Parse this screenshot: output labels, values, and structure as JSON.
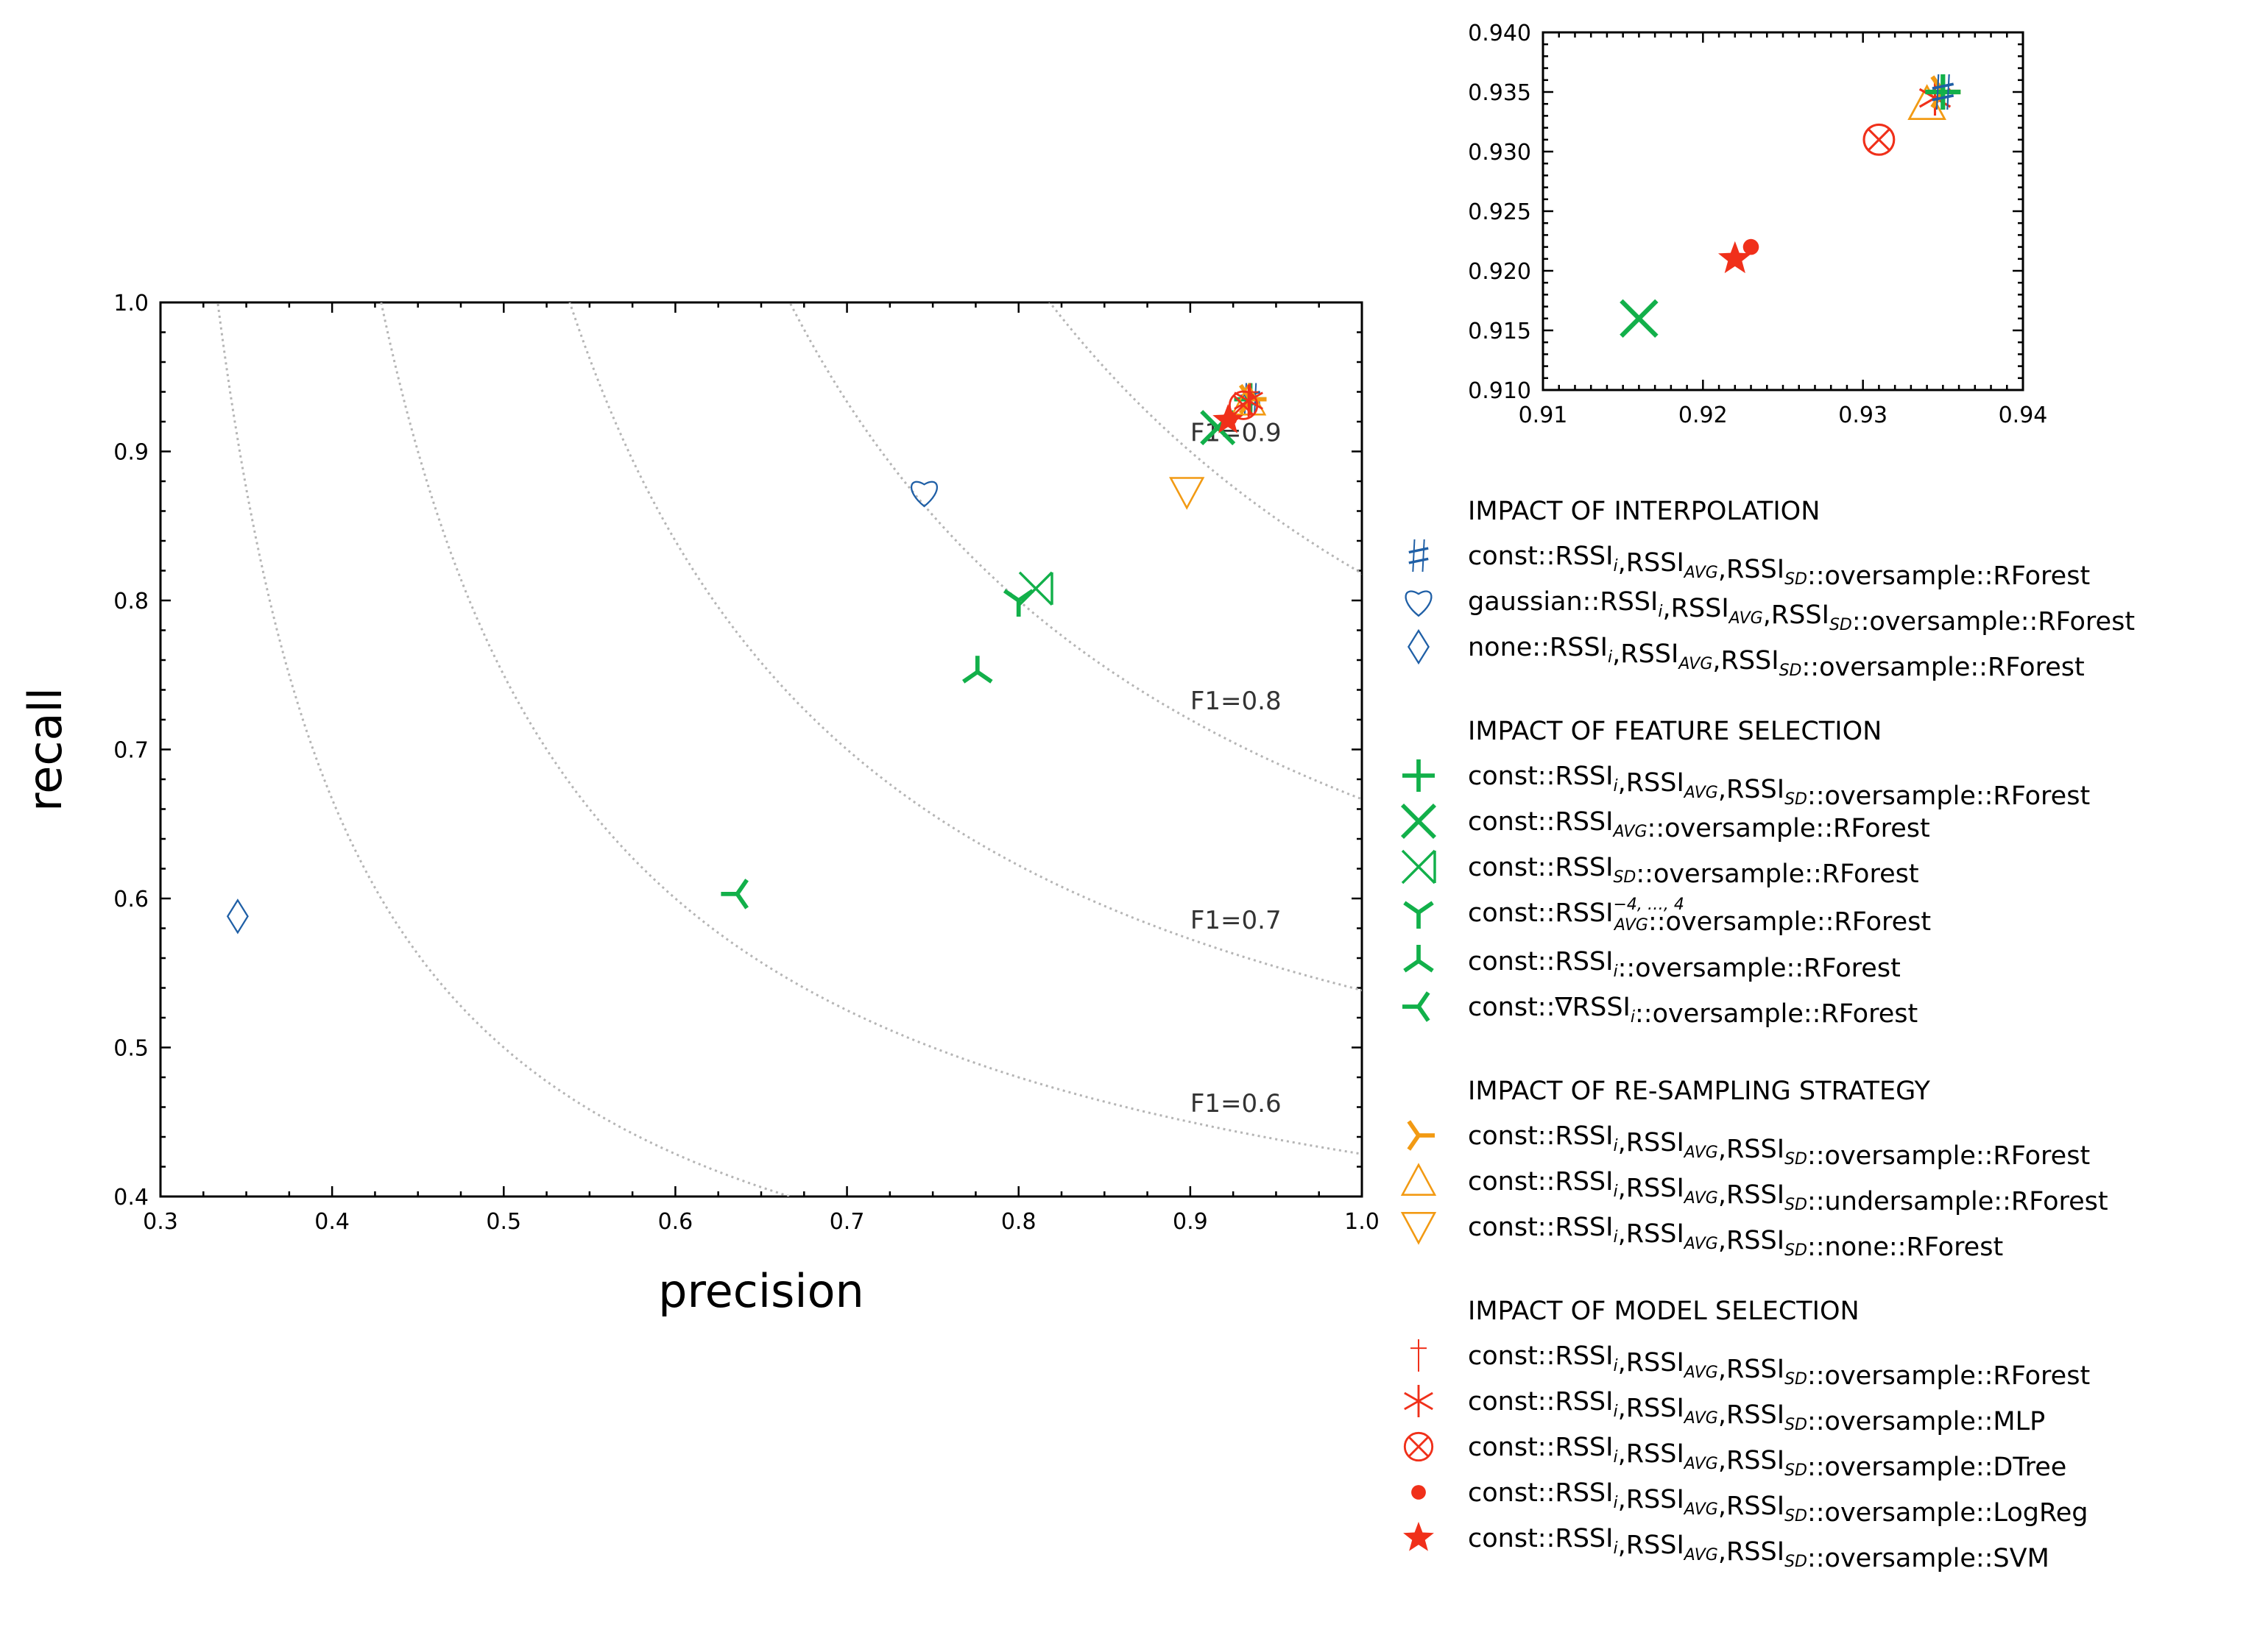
{
  "colors": {
    "blue": "#1f5fa6",
    "green": "#12b04a",
    "orange": "#f29a13",
    "red": "#f0301a",
    "iso": "#b5b5b5",
    "axis": "#000000"
  },
  "chart_data": [
    {
      "id": "main",
      "type": "scatter",
      "title": "",
      "xlabel": "precision",
      "ylabel": "recall",
      "xlim": [
        0.3,
        1.0
      ],
      "ylim": [
        0.4,
        1.0
      ],
      "xticks": [
        "0.3",
        "0.4",
        "0.5",
        "0.6",
        "0.7",
        "0.8",
        "0.9",
        "1.0"
      ],
      "yticks": [
        "0.4",
        "0.5",
        "0.6",
        "0.7",
        "0.8",
        "0.9",
        "1.0"
      ],
      "grid": false,
      "iso_f1": [
        {
          "f1": 0.5,
          "label": ""
        },
        {
          "f1": 0.6,
          "label": "F1=0.6"
        },
        {
          "f1": 0.7,
          "label": "F1=0.7"
        },
        {
          "f1": 0.8,
          "label": "F1=0.8"
        },
        {
          "f1": 0.9,
          "label": "F1=0.9"
        }
      ],
      "points": [
        {
          "series": "interp-const",
          "x": 0.935,
          "y": 0.935
        },
        {
          "series": "interp-gaussian",
          "x": 0.745,
          "y": 0.873
        },
        {
          "series": "interp-none",
          "x": 0.345,
          "y": 0.588
        },
        {
          "series": "feat-all",
          "x": 0.935,
          "y": 0.935
        },
        {
          "series": "feat-avg",
          "x": 0.916,
          "y": 0.916
        },
        {
          "series": "feat-sd",
          "x": 0.81,
          "y": 0.808
        },
        {
          "series": "feat-avg-window",
          "x": 0.8,
          "y": 0.8
        },
        {
          "series": "feat-rssi-i",
          "x": 0.776,
          "y": 0.752
        },
        {
          "series": "feat-grad",
          "x": 0.636,
          "y": 0.603
        },
        {
          "series": "resample-over",
          "x": 0.935,
          "y": 0.935
        },
        {
          "series": "resample-under",
          "x": 0.934,
          "y": 0.934
        },
        {
          "series": "resample-none",
          "x": 0.898,
          "y": 0.873
        },
        {
          "series": "model-rforest",
          "x": 0.935,
          "y": 0.935
        },
        {
          "series": "model-mlp",
          "x": 0.934,
          "y": 0.934
        },
        {
          "series": "model-dtree",
          "x": 0.931,
          "y": 0.931
        },
        {
          "series": "model-logreg",
          "x": 0.923,
          "y": 0.922
        },
        {
          "series": "model-svm",
          "x": 0.922,
          "y": 0.921
        }
      ]
    },
    {
      "id": "inset",
      "type": "scatter",
      "title": "",
      "xlabel": "",
      "ylabel": "",
      "xlim": [
        0.91,
        0.94
      ],
      "ylim": [
        0.91,
        0.94
      ],
      "xticks": [
        "0.91",
        "0.92",
        "0.93",
        "0.94"
      ],
      "yticks": [
        "0.910",
        "0.915",
        "0.920",
        "0.925",
        "0.930",
        "0.935",
        "0.940"
      ],
      "grid": false,
      "points": [
        {
          "series": "feat-avg",
          "x": 0.916,
          "y": 0.916
        },
        {
          "series": "model-svm",
          "x": 0.922,
          "y": 0.921
        },
        {
          "series": "model-logreg",
          "x": 0.923,
          "y": 0.922
        },
        {
          "series": "model-dtree",
          "x": 0.931,
          "y": 0.931
        },
        {
          "series": "resample-under",
          "x": 0.934,
          "y": 0.934
        },
        {
          "series": "model-mlp",
          "x": 0.9345,
          "y": 0.9345
        },
        {
          "series": "resample-over",
          "x": 0.935,
          "y": 0.935
        },
        {
          "series": "feat-all",
          "x": 0.935,
          "y": 0.935
        },
        {
          "series": "interp-const",
          "x": 0.935,
          "y": 0.935
        }
      ]
    }
  ],
  "series_styles": {
    "interp-const": {
      "marker": "sharp",
      "color": "blue"
    },
    "interp-gaussian": {
      "marker": "heart",
      "color": "blue"
    },
    "interp-none": {
      "marker": "diamond",
      "color": "blue"
    },
    "feat-all": {
      "marker": "plus",
      "color": "green"
    },
    "feat-avg": {
      "marker": "x",
      "color": "green"
    },
    "feat-sd": {
      "marker": "xbar",
      "color": "green"
    },
    "feat-avg-window": {
      "marker": "tri-down",
      "color": "green"
    },
    "feat-rssi-i": {
      "marker": "tri-up",
      "color": "green"
    },
    "feat-grad": {
      "marker": "tri-left",
      "color": "green"
    },
    "resample-over": {
      "marker": "tri-right",
      "color": "orange"
    },
    "resample-under": {
      "marker": "triangle-up",
      "color": "orange"
    },
    "resample-none": {
      "marker": "triangle-down",
      "color": "orange"
    },
    "model-rforest": {
      "marker": "dagger",
      "color": "red"
    },
    "model-mlp": {
      "marker": "asterisk",
      "color": "red"
    },
    "model-dtree": {
      "marker": "otimes",
      "color": "red"
    },
    "model-logreg": {
      "marker": "dot",
      "color": "red"
    },
    "model-svm": {
      "marker": "star",
      "color": "red"
    }
  },
  "legend": [
    {
      "title": "IMPACT OF INTERPOLATION",
      "entries": [
        {
          "series": "interp-const",
          "label": "const::RSSIi,RSSIAVG,RSSISD::oversample::RForest",
          "parts": [
            "const::RSSI",
            "i",
            ",RSSI",
            "AVG",
            ",RSSI",
            "SD",
            "::oversample::RForest"
          ]
        },
        {
          "series": "interp-gaussian",
          "label": "gaussian::RSSIi,RSSIAVG,RSSISD::oversample::RForest",
          "parts": [
            "gaussian::RSSI",
            "i",
            ",RSSI",
            "AVG",
            ",RSSI",
            "SD",
            "::oversample::RForest"
          ]
        },
        {
          "series": "interp-none",
          "label": "none::RSSIi,RSSIAVG,RSSISD::oversample::RForest",
          "parts": [
            "none::RSSI",
            "i",
            ",RSSI",
            "AVG",
            ",RSSI",
            "SD",
            "::oversample::RForest"
          ]
        }
      ]
    },
    {
      "title": "IMPACT OF FEATURE SELECTION",
      "entries": [
        {
          "series": "feat-all",
          "label": "const::RSSIi,RSSIAVG,RSSISD::oversample::RForest",
          "parts": [
            "const::RSSI",
            "i",
            ",RSSI",
            "AVG",
            ",RSSI",
            "SD",
            "::oversample::RForest"
          ]
        },
        {
          "series": "feat-avg",
          "label": "const::RSSIAVG::oversample::RForest",
          "parts": [
            "const::RSSI",
            "AVG",
            "::oversample::RForest"
          ]
        },
        {
          "series": "feat-sd",
          "label": "const::RSSISD::oversample::RForest",
          "parts": [
            "const::RSSI",
            "SD",
            "::oversample::RForest"
          ]
        },
        {
          "series": "feat-avg-window",
          "label": "const::RSSI−4,…,4AVG::oversample::RForest",
          "parts": [
            "const::RSSI",
            "AVG",
            "::oversample::RForest"
          ],
          "sup": "−4, …, 4"
        },
        {
          "series": "feat-rssi-i",
          "label": "const::RSSIi::oversample::RForest",
          "parts": [
            "const::RSSI",
            "i",
            "::oversample::RForest"
          ]
        },
        {
          "series": "feat-grad",
          "label": "const::∇RSSIi::oversample::RForest",
          "parts": [
            "const::∇RSSI",
            "i",
            "::oversample::RForest"
          ]
        }
      ]
    },
    {
      "title": "IMPACT OF RE-SAMPLING STRATEGY",
      "entries": [
        {
          "series": "resample-over",
          "label": "const::RSSIi,RSSIAVG,RSSISD::oversample::RForest",
          "parts": [
            "const::RSSI",
            "i",
            ",RSSI",
            "AVG",
            ",RSSI",
            "SD",
            "::oversample::RForest"
          ]
        },
        {
          "series": "resample-under",
          "label": "const::RSSIi,RSSIAVG,RSSISD::undersample::RForest",
          "parts": [
            "const::RSSI",
            "i",
            ",RSSI",
            "AVG",
            ",RSSI",
            "SD",
            "::undersample::RForest"
          ]
        },
        {
          "series": "resample-none",
          "label": "const::RSSIi,RSSIAVG,RSSISD::none::RForest",
          "parts": [
            "const::RSSI",
            "i",
            ",RSSI",
            "AVG",
            ",RSSI",
            "SD",
            "::none::RForest"
          ]
        }
      ]
    },
    {
      "title": "IMPACT OF MODEL SELECTION",
      "entries": [
        {
          "series": "model-rforest",
          "label": "const::RSSIi,RSSIAVG,RSSISD::oversample::RForest",
          "parts": [
            "const::RSSI",
            "i",
            ",RSSI",
            "AVG",
            ",RSSI",
            "SD",
            "::oversample::RForest"
          ]
        },
        {
          "series": "model-mlp",
          "label": "const::RSSIi,RSSIAVG,RSSISD::oversample::MLP",
          "parts": [
            "const::RSSI",
            "i",
            ",RSSI",
            "AVG",
            ",RSSI",
            "SD",
            "::oversample::MLP"
          ]
        },
        {
          "series": "model-dtree",
          "label": "const::RSSIi,RSSIAVG,RSSISD::oversample::DTree",
          "parts": [
            "const::RSSI",
            "i",
            ",RSSI",
            "AVG",
            ",RSSI",
            "SD",
            "::oversample::DTree"
          ]
        },
        {
          "series": "model-logreg",
          "label": "const::RSSIi,RSSIAVG,RSSISD::oversample::LogReg",
          "parts": [
            "const::RSSI",
            "i",
            ",RSSI",
            "AVG",
            ",RSSI",
            "SD",
            "::oversample::LogReg"
          ]
        },
        {
          "series": "model-svm",
          "label": "const::RSSIi,RSSIAVG,RSSISD::oversample::SVM",
          "parts": [
            "const::RSSI",
            "i",
            ",RSSI",
            "AVG",
            ",RSSI",
            "SD",
            "::oversample::SVM"
          ]
        }
      ]
    }
  ]
}
